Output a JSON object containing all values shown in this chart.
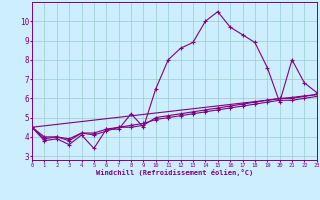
{
  "xlabel": "Windchill (Refroidissement éolien,°C)",
  "bg_color": "#cceeff",
  "line_color": "#800080",
  "grid_color": "#99cccc",
  "x_ticks": [
    0,
    1,
    2,
    3,
    4,
    5,
    6,
    7,
    8,
    9,
    10,
    11,
    12,
    13,
    14,
    15,
    16,
    17,
    18,
    19,
    20,
    21,
    22,
    23
  ],
  "y_ticks": [
    3,
    4,
    5,
    6,
    7,
    8,
    9,
    10
  ],
  "ylim": [
    2.8,
    11.0
  ],
  "xlim": [
    0,
    23
  ],
  "line1_x": [
    0,
    1,
    2,
    3,
    4,
    5,
    6,
    7,
    8,
    9,
    10,
    11,
    12,
    13,
    14,
    15,
    16,
    17,
    18,
    19,
    20,
    21,
    22,
    23
  ],
  "line1_y": [
    4.5,
    3.8,
    3.9,
    3.6,
    4.1,
    3.4,
    4.4,
    4.4,
    5.2,
    4.5,
    6.5,
    8.0,
    8.6,
    8.9,
    10.0,
    10.5,
    9.7,
    9.3,
    8.9,
    7.6,
    5.8,
    8.0,
    6.8,
    6.3
  ],
  "line2_x": [
    0,
    1,
    2,
    3,
    4,
    5,
    6,
    7,
    8,
    9,
    10,
    11,
    12,
    13,
    14,
    15,
    16,
    17,
    18,
    19,
    20,
    21,
    22,
    23
  ],
  "line2_y": [
    4.5,
    3.9,
    4.0,
    3.8,
    4.2,
    4.1,
    4.3,
    4.5,
    4.5,
    4.6,
    5.0,
    5.1,
    5.2,
    5.3,
    5.4,
    5.5,
    5.6,
    5.7,
    5.8,
    5.9,
    6.0,
    6.0,
    6.1,
    6.2
  ],
  "line3_x": [
    0,
    1,
    2,
    3,
    4,
    5,
    6,
    7,
    8,
    9,
    10,
    11,
    12,
    13,
    14,
    15,
    16,
    17,
    18,
    19,
    20,
    21,
    22,
    23
  ],
  "line3_y": [
    4.5,
    4.0,
    4.0,
    3.9,
    4.2,
    4.2,
    4.4,
    4.5,
    4.6,
    4.7,
    4.9,
    5.0,
    5.1,
    5.2,
    5.3,
    5.4,
    5.5,
    5.6,
    5.7,
    5.8,
    5.9,
    5.9,
    6.0,
    6.1
  ],
  "line4_x": [
    0,
    23
  ],
  "line4_y": [
    4.5,
    6.2
  ]
}
